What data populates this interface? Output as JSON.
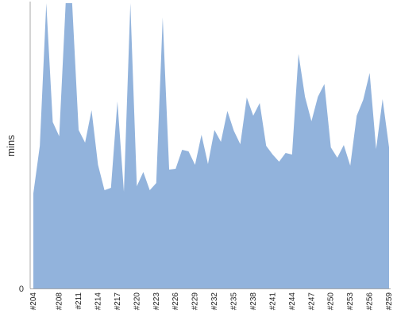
{
  "chart_data": {
    "type": "area",
    "ylabel": "mins",
    "y_tick_labels": [
      "0"
    ],
    "ylim": [
      0,
      360
    ],
    "grid": false,
    "fill_color": "#92b3dc",
    "axis_color": "#aaaaaa",
    "x_tick_labels": [
      "#204",
      "#208",
      "#211",
      "#214",
      "#217",
      "#220",
      "#223",
      "#226",
      "#229",
      "#232",
      "#235",
      "#238",
      "#241",
      "#244",
      "#247",
      "#250",
      "#253",
      "#256",
      "#259"
    ],
    "x": [
      "#204",
      "#205",
      "#206",
      "#207",
      "#208",
      "#209",
      "#210",
      "#211",
      "#212",
      "#213",
      "#214",
      "#215",
      "#216",
      "#217",
      "#218",
      "#219",
      "#220",
      "#221",
      "#222",
      "#223",
      "#224",
      "#225",
      "#226",
      "#227",
      "#228",
      "#229",
      "#230",
      "#231",
      "#232",
      "#233",
      "#234",
      "#235",
      "#236",
      "#237",
      "#238",
      "#239",
      "#240",
      "#241",
      "#242",
      "#243",
      "#244",
      "#245",
      "#246",
      "#247",
      "#248",
      "#249",
      "#250",
      "#251",
      "#252",
      "#253",
      "#254",
      "#255",
      "#256",
      "#257",
      "#258",
      "#259"
    ],
    "values": [
      120,
      180,
      360,
      210,
      192,
      360,
      360,
      200,
      184,
      225,
      156,
      124,
      127,
      236,
      122,
      360,
      129,
      147,
      124,
      133,
      342,
      150,
      151,
      175,
      173,
      156,
      194,
      157,
      200,
      185,
      224,
      199,
      182,
      241,
      218,
      234,
      180,
      169,
      160,
      171,
      169,
      296,
      242,
      211,
      242,
      258,
      178,
      165,
      181,
      155,
      218,
      238,
      272,
      176,
      239,
      178
    ]
  }
}
